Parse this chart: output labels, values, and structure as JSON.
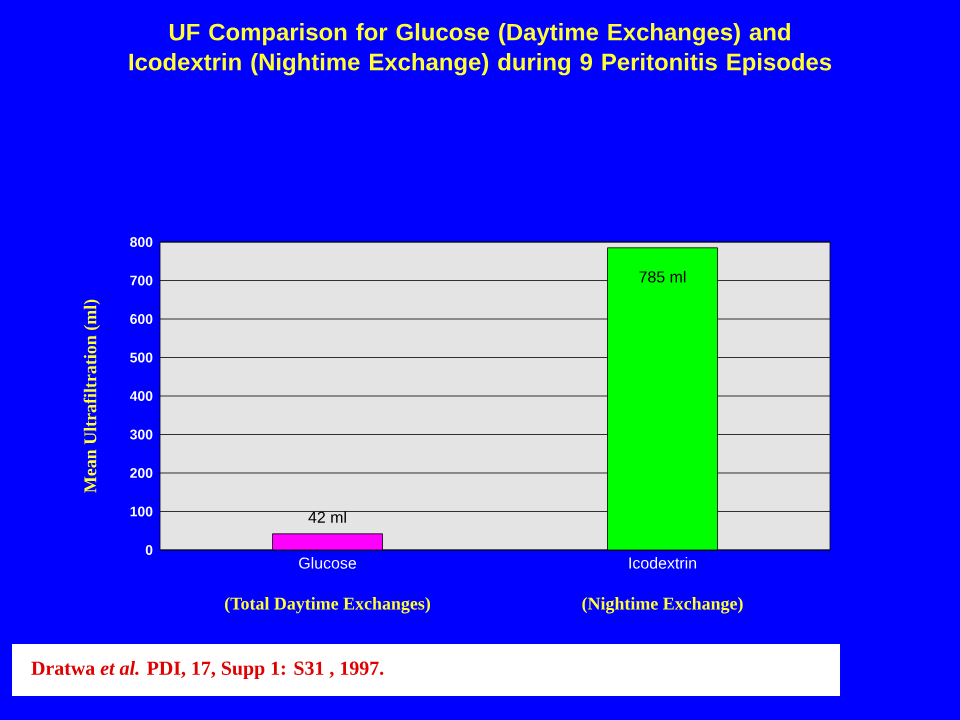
{
  "chart_data": {
    "type": "bar",
    "title": "UF Comparison for Glucose (Daytime Exchanges) and Icodextrin (Nightime Exchange) during 9 Peritonitis Episodes",
    "ylabel": "Mean Ultrafiltration (ml)",
    "categories": [
      "Glucose",
      "Icodextrin"
    ],
    "values": [
      42,
      785
    ],
    "colors": [
      "#ff00ff",
      "#00ff00"
    ],
    "value_labels": [
      "42 ml",
      "785 ml"
    ],
    "ylim": [
      0,
      800
    ],
    "yticks": [
      0,
      100,
      200,
      300,
      400,
      500,
      600,
      700,
      800
    ],
    "grid": "y",
    "annotations": [
      "(Total Daytime Exchanges)",
      "(Nightime Exchange)",
      "Dratwa *et al.* PDI, 17, Supp 1: S31 , 1997."
    ]
  }
}
